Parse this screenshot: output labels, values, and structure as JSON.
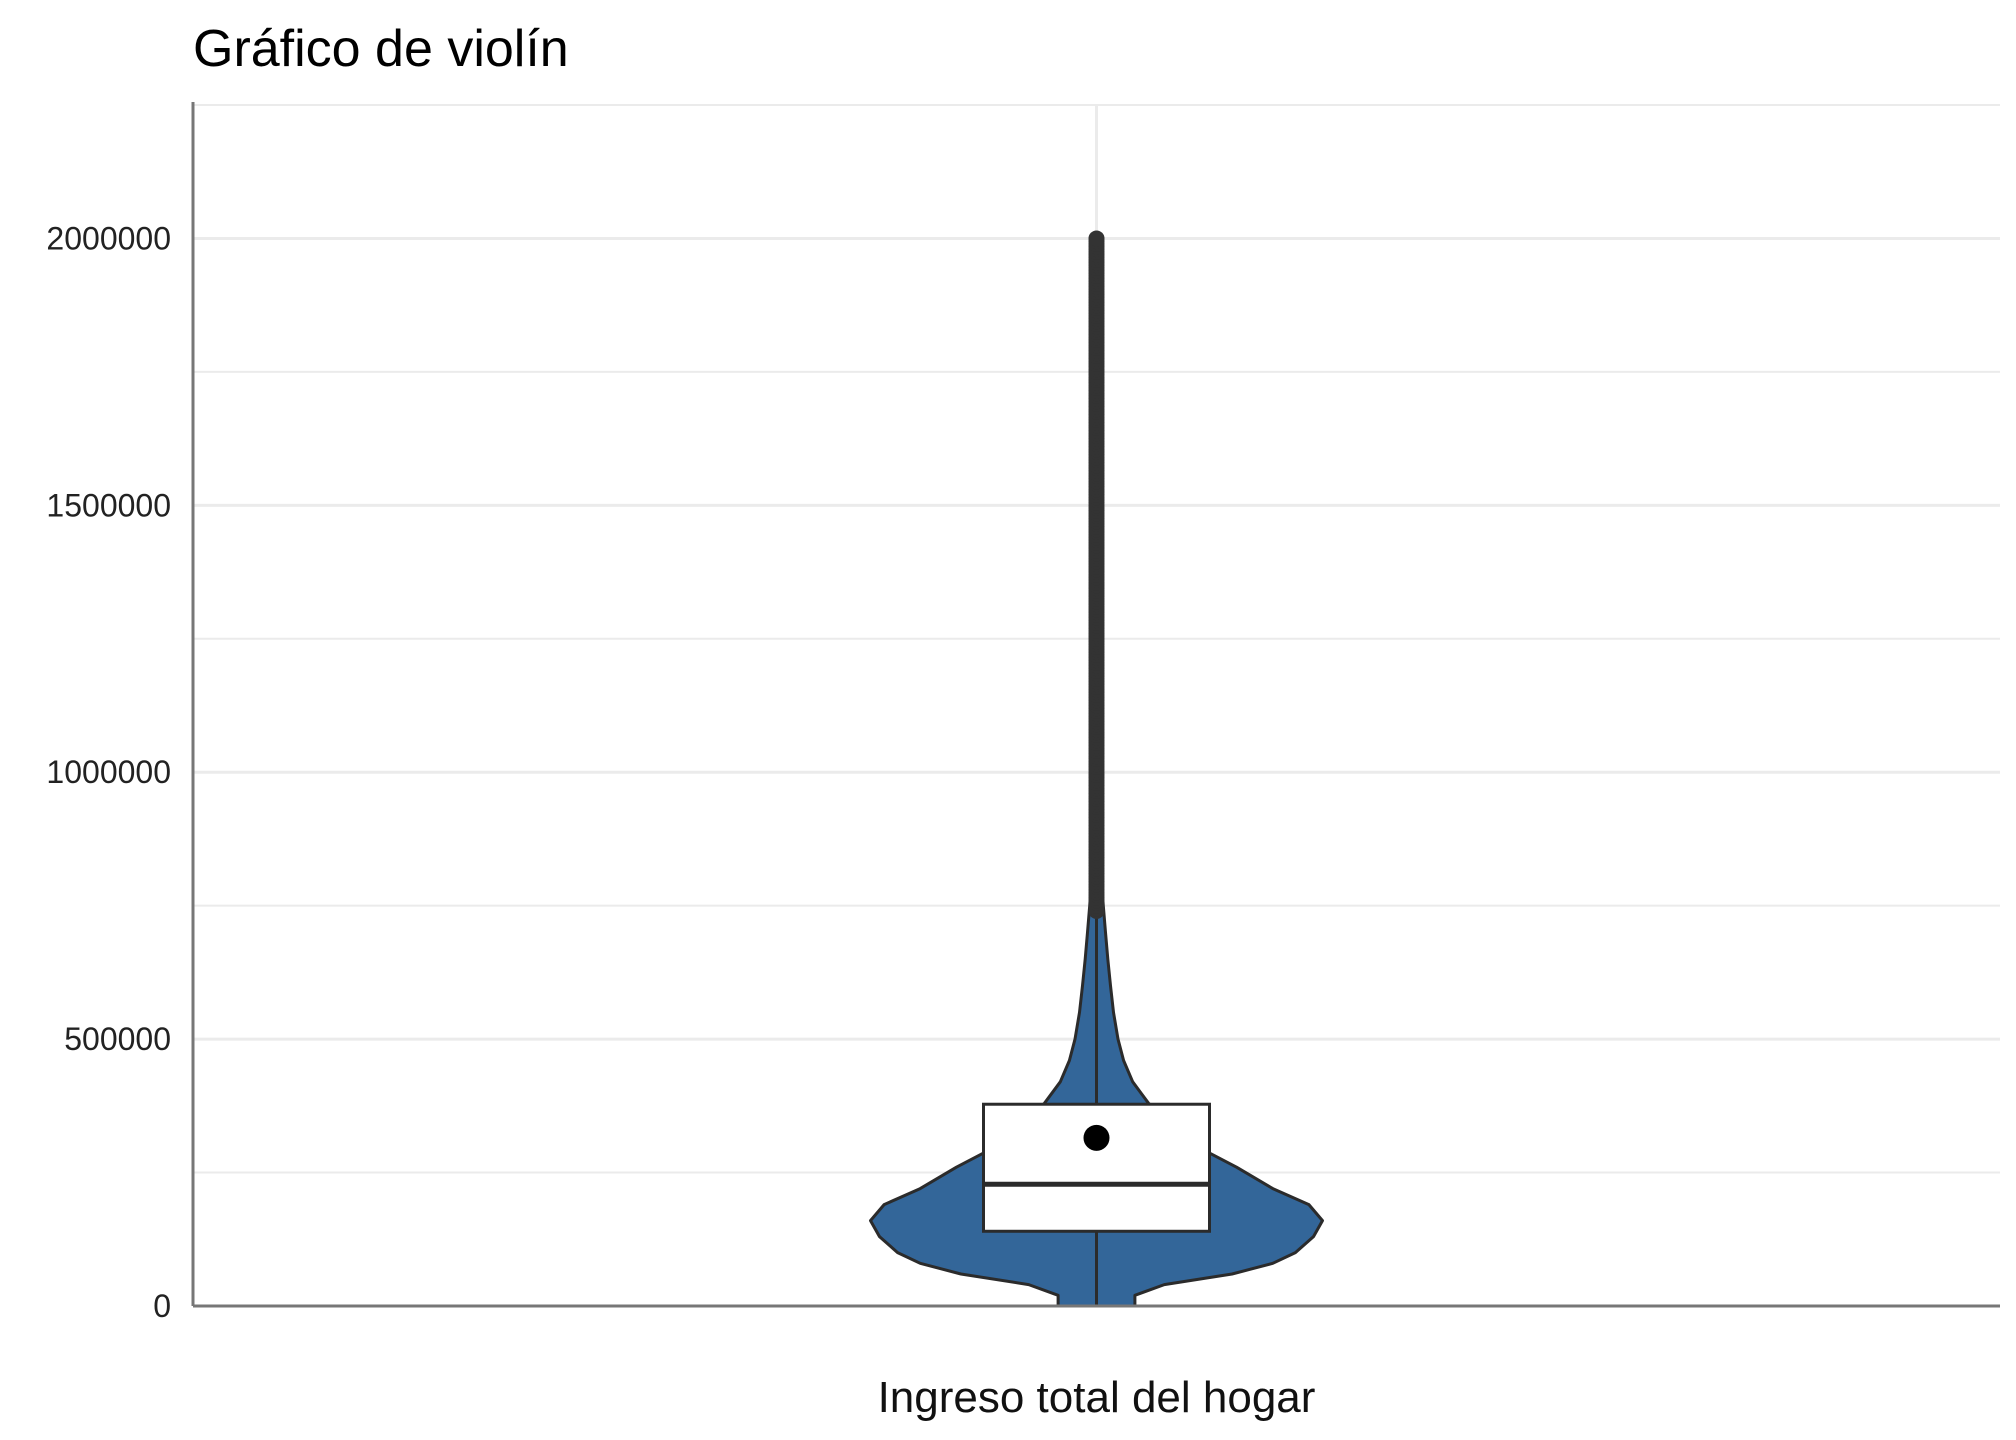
{
  "chart_data": {
    "type": "violin",
    "title": "Gráfico de violín",
    "xlabel": "",
    "ylabel": "",
    "categories": [
      "Ingreso total del hogar"
    ],
    "ylim": [
      0,
      2250000
    ],
    "y_ticks": [
      0,
      500000,
      1000000,
      1500000,
      2000000
    ],
    "y_tick_labels": [
      "0",
      "500000",
      "1000000",
      "1500000",
      "2000000"
    ],
    "grid": true,
    "legend": "none",
    "colors": {
      "violin_fill": "#336699",
      "violin_stroke": "#2b2b2b",
      "box_fill": "#ffffff",
      "outlier": "#333333",
      "mean_point": "#000000",
      "grid": "#ebebeb",
      "axis": "#777777"
    },
    "violin_density": [
      {
        "y": 0,
        "w": 0.17
      },
      {
        "y": 20000,
        "w": 0.17
      },
      {
        "y": 40000,
        "w": 0.3
      },
      {
        "y": 60000,
        "w": 0.6
      },
      {
        "y": 80000,
        "w": 0.78
      },
      {
        "y": 100000,
        "w": 0.88
      },
      {
        "y": 130000,
        "w": 0.96
      },
      {
        "y": 160000,
        "w": 1.0
      },
      {
        "y": 190000,
        "w": 0.94
      },
      {
        "y": 220000,
        "w": 0.78
      },
      {
        "y": 260000,
        "w": 0.62
      },
      {
        "y": 300000,
        "w": 0.44
      },
      {
        "y": 340000,
        "w": 0.33
      },
      {
        "y": 380000,
        "w": 0.23
      },
      {
        "y": 420000,
        "w": 0.16
      },
      {
        "y": 460000,
        "w": 0.12
      },
      {
        "y": 500000,
        "w": 0.095
      },
      {
        "y": 550000,
        "w": 0.075
      },
      {
        "y": 600000,
        "w": 0.062
      },
      {
        "y": 650000,
        "w": 0.05
      },
      {
        "y": 700000,
        "w": 0.04
      },
      {
        "y": 750000,
        "w": 0.03
      },
      {
        "y": 800000,
        "w": 0.022
      },
      {
        "y": 900000,
        "w": 0.014
      },
      {
        "y": 1000000,
        "w": 0.009
      },
      {
        "y": 1200000,
        "w": 0.006
      },
      {
        "y": 1500000,
        "w": 0.005
      },
      {
        "y": 2000000,
        "w": 0.004
      }
    ],
    "box": {
      "q1": 140000,
      "median": 228000,
      "q3": 378000,
      "whisker_low": 0,
      "whisker_high": 735000
    },
    "outliers_range": [
      740000,
      2000000
    ],
    "mean": 315000
  }
}
